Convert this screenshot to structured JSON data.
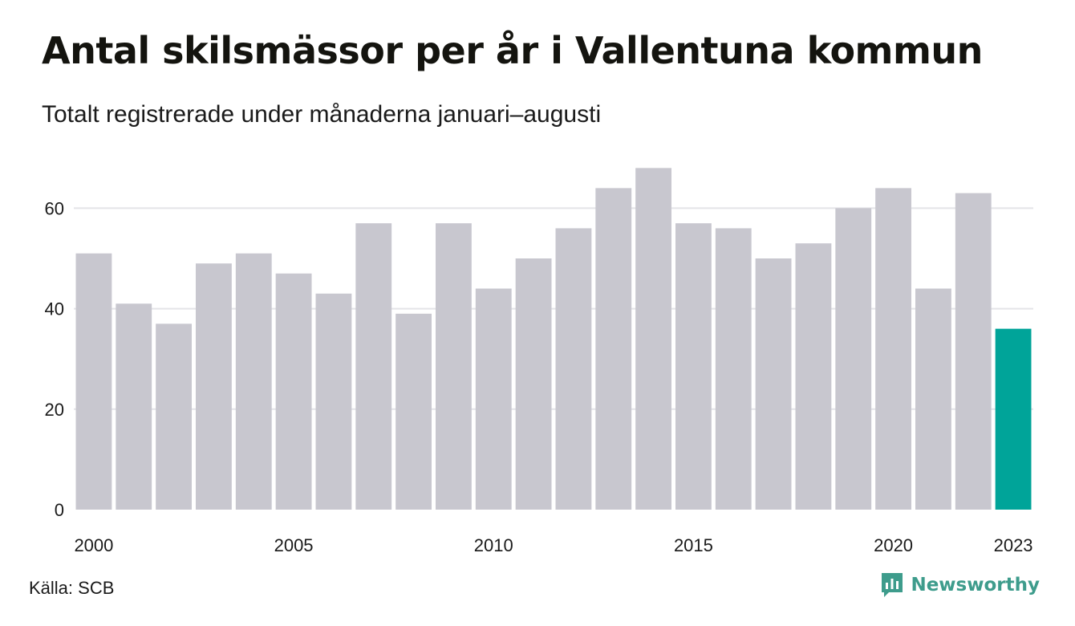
{
  "header": {
    "title": "Antal skilsmässor per år i Vallentuna kommun",
    "subtitle": "Totalt registrerade under månaderna januari–augusti"
  },
  "footer": {
    "source": "Källa: SCB",
    "brand": "Newsworthy"
  },
  "colors": {
    "bar_default": "#c8c7cf",
    "bar_highlight": "#00a499",
    "gridline": "#e4e4e8",
    "brand": "#3e9c8c"
  },
  "chart_data": {
    "type": "bar",
    "title": "Antal skilsmässor per år i Vallentuna kommun",
    "subtitle": "Totalt registrerade under månaderna januari–augusti",
    "categories": [
      2000,
      2001,
      2002,
      2003,
      2004,
      2005,
      2006,
      2007,
      2008,
      2009,
      2010,
      2011,
      2012,
      2013,
      2014,
      2015,
      2016,
      2017,
      2018,
      2019,
      2020,
      2021,
      2022,
      2023
    ],
    "values": [
      51,
      41,
      37,
      49,
      51,
      47,
      43,
      57,
      39,
      57,
      44,
      50,
      56,
      64,
      68,
      57,
      56,
      50,
      53,
      60,
      64,
      44,
      63,
      36
    ],
    "highlight_category": 2023,
    "x_tick_labels": [
      "2000",
      "2005",
      "2010",
      "2015",
      "2020",
      "2023"
    ],
    "y_ticks": [
      0,
      20,
      40,
      60
    ],
    "ylim": [
      0,
      70
    ],
    "xlabel": "",
    "ylabel": "",
    "grid": true,
    "legend": "none"
  }
}
